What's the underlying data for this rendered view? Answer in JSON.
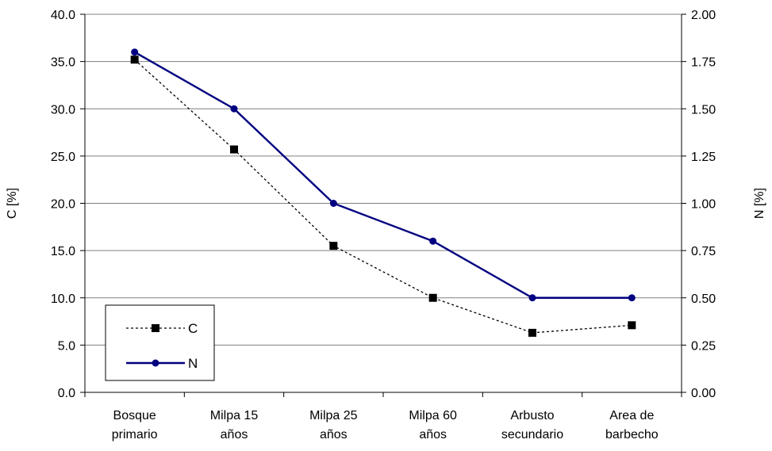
{
  "chart_data": {
    "type": "line",
    "categories": [
      [
        "Bosque",
        "primario"
      ],
      [
        "Milpa 15",
        "años"
      ],
      [
        "Milpa 25",
        "años"
      ],
      [
        "Milpa 60",
        "años"
      ],
      [
        "Arbusto",
        "secundario"
      ],
      [
        "Area de",
        "barbecho"
      ]
    ],
    "y_left": {
      "label": "C [%]",
      "range": [
        0,
        40
      ],
      "ticks": [
        "0.0",
        "5.0",
        "10.0",
        "15.0",
        "20.0",
        "25.0",
        "30.0",
        "35.0",
        "40.0"
      ]
    },
    "y_right": {
      "label": "N [%]",
      "range": [
        0,
        2
      ],
      "ticks": [
        "0.00",
        "0.25",
        "0.50",
        "0.75",
        "1.00",
        "1.25",
        "1.50",
        "1.75",
        "2.00"
      ]
    },
    "series": [
      {
        "name": "C",
        "axis": "left",
        "values": [
          35.2,
          25.7,
          15.5,
          10.0,
          6.3,
          7.1
        ],
        "color": "#000000",
        "line_style": "dotted",
        "marker": "square"
      },
      {
        "name": "N",
        "axis": "right",
        "values": [
          1.8,
          1.5,
          1.0,
          0.8,
          0.5,
          0.5
        ],
        "color": "#000080",
        "line_style": "solid",
        "marker": "circle"
      }
    ],
    "grid": "horizontal",
    "legend_position": "bottom-left"
  }
}
